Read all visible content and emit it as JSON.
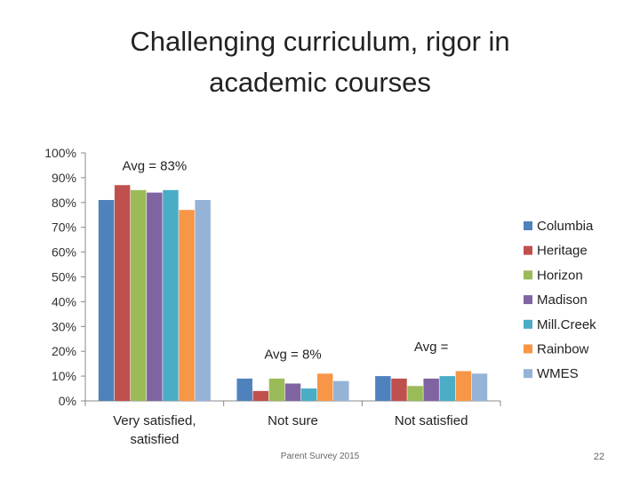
{
  "slide": {
    "footer_text": "Parent Survey 2015",
    "page_number": "22"
  },
  "chart_data": {
    "type": "bar",
    "title": "Challenging curriculum, rigor in academic courses",
    "categories": [
      "Very satisfied, satisfied",
      "Not sure",
      "Not satisfied"
    ],
    "ylim": [
      0,
      100
    ],
    "yticks": [
      0,
      10,
      20,
      30,
      40,
      50,
      60,
      70,
      80,
      90,
      100
    ],
    "ytick_format": "percent",
    "grid": false,
    "legend_position": "right",
    "series": [
      {
        "name": "Columbia",
        "color": "#4f81bd",
        "values": [
          81,
          9,
          10
        ]
      },
      {
        "name": "Heritage",
        "color": "#c0504d",
        "values": [
          87,
          4,
          9
        ]
      },
      {
        "name": "Horizon",
        "color": "#9bbb59",
        "values": [
          85,
          9,
          6
        ]
      },
      {
        "name": "Madison",
        "color": "#8064a2",
        "values": [
          84,
          7,
          9
        ]
      },
      {
        "name": "Mill.Creek",
        "color": "#4bacc6",
        "values": [
          85,
          5,
          10
        ]
      },
      {
        "name": "Rainbow",
        "color": "#f79646",
        "values": [
          77,
          11,
          12
        ]
      },
      {
        "name": "WMES",
        "color": "#95b3d7",
        "values": [
          81,
          8,
          11
        ]
      }
    ],
    "annotations": [
      {
        "text": "Avg = 83%",
        "category_index": 0,
        "y": 93
      },
      {
        "text": "Avg = 8%",
        "category_index": 1,
        "y": 17
      },
      {
        "text": "Avg =",
        "category_index": 2,
        "y": 20
      }
    ]
  }
}
